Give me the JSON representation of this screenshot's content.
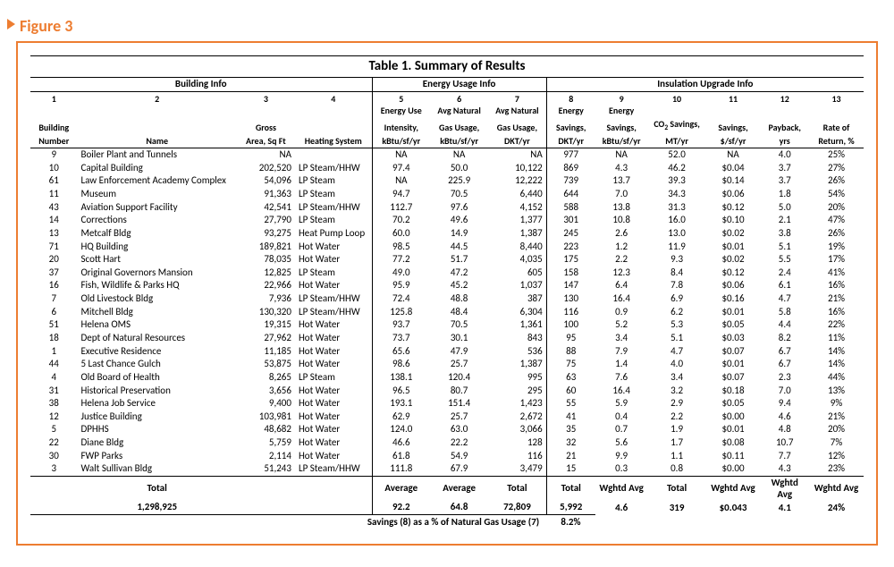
{
  "figureLabel": "Figure 3",
  "tableTitle": "Table 1. Summary of Results",
  "groups": {
    "g1": "Building Info",
    "g2": "Energy Usage Info",
    "g3": "Insulation Upgrade Info"
  },
  "colNums": [
    "1",
    "2",
    "3",
    "4",
    "5",
    "6",
    "7",
    "8",
    "9",
    "10",
    "11",
    "12",
    "13"
  ],
  "headers": {
    "h1a": "Building",
    "h1b": "Number",
    "h2": "Name",
    "h3a": "Gross",
    "h3b": "Area, Sq Ft",
    "h4": "Heating System",
    "h5a": "Energy Use",
    "h5b": "Intensity,",
    "h5c": "kBtu/sf/yr",
    "h6a": "Avg Natural",
    "h6b": "Gas Usage,",
    "h6c": "kBtu/sf/yr",
    "h7a": "Avg Natural",
    "h7b": "Gas Usage,",
    "h7c": "DKT/yr",
    "h8a": "Energy",
    "h8b": "Savings,",
    "h8c": "DKT/yr",
    "h9a": "Energy",
    "h9b": "Savings,",
    "h9c": "kBtu/sf/yr",
    "h10a": "CO",
    "h10b": " Savings,",
    "h10c": "MT/yr",
    "h11a": "Savings,",
    "h11b": "$/sf/yr",
    "h12a": "Payback,",
    "h12b": "yrs",
    "h13a": "Rate of",
    "h13b": "Return, %"
  },
  "rows": [
    {
      "n": "9",
      "name": "Boiler Plant and Tunnels",
      "area": "NA",
      "hs": "",
      "eui": "NA",
      "g6": "NA",
      "g7": "NA",
      "s8": "977",
      "s9": "NA",
      "co2": "52.0",
      "sv": "NA",
      "pb": "4.0",
      "rr": "25%"
    },
    {
      "n": "10",
      "name": "Capital Building",
      "area": "202,520",
      "hs": "LP Steam/HHW",
      "eui": "97.4",
      "g6": "50.0",
      "g7": "10,122",
      "s8": "869",
      "s9": "4.3",
      "co2": "46.2",
      "sv": "$0.04",
      "pb": "3.7",
      "rr": "27%"
    },
    {
      "n": "61",
      "name": "Law Enforcement Academy Complex",
      "area": "54,096",
      "hs": "LP Steam",
      "eui": "NA",
      "g6": "225.9",
      "g7": "12,222",
      "s8": "739",
      "s9": "13.7",
      "co2": "39.3",
      "sv": "$0.14",
      "pb": "3.7",
      "rr": "26%"
    },
    {
      "n": "11",
      "name": "Museum",
      "area": "91,363",
      "hs": "LP Steam",
      "eui": "94.7",
      "g6": "70.5",
      "g7": "6,440",
      "s8": "644",
      "s9": "7.0",
      "co2": "34.3",
      "sv": "$0.06",
      "pb": "1.8",
      "rr": "54%"
    },
    {
      "n": "43",
      "name": "Aviation Support Facility",
      "area": "42,541",
      "hs": "LP Steam/HHW",
      "eui": "112.7",
      "g6": "97.6",
      "g7": "4,152",
      "s8": "588",
      "s9": "13.8",
      "co2": "31.3",
      "sv": "$0.12",
      "pb": "5.0",
      "rr": "20%"
    },
    {
      "n": "14",
      "name": "Corrections",
      "area": "27,790",
      "hs": "LP Steam",
      "eui": "70.2",
      "g6": "49.6",
      "g7": "1,377",
      "s8": "301",
      "s9": "10.8",
      "co2": "16.0",
      "sv": "$0.10",
      "pb": "2.1",
      "rr": "47%"
    },
    {
      "n": "13",
      "name": "Metcalf Bldg",
      "area": "93,275",
      "hs": "Heat Pump Loop",
      "eui": "60.0",
      "g6": "14.9",
      "g7": "1,387",
      "s8": "245",
      "s9": "2.6",
      "co2": "13.0",
      "sv": "$0.02",
      "pb": "3.8",
      "rr": "26%"
    },
    {
      "n": "71",
      "name": "HQ  Building",
      "area": "189,821",
      "hs": "Hot Water",
      "eui": "98.5",
      "g6": "44.5",
      "g7": "8,440",
      "s8": "223",
      "s9": "1.2",
      "co2": "11.9",
      "sv": "$0.01",
      "pb": "5.1",
      "rr": "19%"
    },
    {
      "n": "20",
      "name": "Scott Hart",
      "area": "78,035",
      "hs": "Hot Water",
      "eui": "77.2",
      "g6": "51.7",
      "g7": "4,035",
      "s8": "175",
      "s9": "2.2",
      "co2": "9.3",
      "sv": "$0.02",
      "pb": "5.5",
      "rr": "17%"
    },
    {
      "n": "37",
      "name": "Original Governors Mansion",
      "area": "12,825",
      "hs": "LP Steam",
      "eui": "49.0",
      "g6": "47.2",
      "g7": "605",
      "s8": "158",
      "s9": "12.3",
      "co2": "8.4",
      "sv": "$0.12",
      "pb": "2.4",
      "rr": "41%"
    },
    {
      "n": "16",
      "name": "Fish, Wildlife & Parks HQ",
      "area": "22,966",
      "hs": "Hot Water",
      "eui": "95.9",
      "g6": "45.2",
      "g7": "1,037",
      "s8": "147",
      "s9": "6.4",
      "co2": "7.8",
      "sv": "$0.06",
      "pb": "6.1",
      "rr": "16%"
    },
    {
      "n": "7",
      "name": "Old Livestock Bldg",
      "area": "7,936",
      "hs": "LP Steam/HHW",
      "eui": "72.4",
      "g6": "48.8",
      "g7": "387",
      "s8": "130",
      "s9": "16.4",
      "co2": "6.9",
      "sv": "$0.16",
      "pb": "4.7",
      "rr": "21%"
    },
    {
      "n": "6",
      "name": "Mitchell Bldg",
      "area": "130,320",
      "hs": "LP Steam/HHW",
      "eui": "125.8",
      "g6": "48.4",
      "g7": "6,304",
      "s8": "116",
      "s9": "0.9",
      "co2": "6.2",
      "sv": "$0.01",
      "pb": "5.8",
      "rr": "16%"
    },
    {
      "n": "51",
      "name": "Helena OMS",
      "area": "19,315",
      "hs": "Hot Water",
      "eui": "93.7",
      "g6": "70.5",
      "g7": "1,361",
      "s8": "100",
      "s9": "5.2",
      "co2": "5.3",
      "sv": "$0.05",
      "pb": "4.4",
      "rr": "22%"
    },
    {
      "n": "18",
      "name": "Dept of Natural Resources",
      "area": "27,962",
      "hs": "Hot Water",
      "eui": "73.7",
      "g6": "30.1",
      "g7": "843",
      "s8": "95",
      "s9": "3.4",
      "co2": "5.1",
      "sv": "$0.03",
      "pb": "8.2",
      "rr": "11%"
    },
    {
      "n": "1",
      "name": "Executive Residence",
      "area": "11,185",
      "hs": "Hot Water",
      "eui": "65.6",
      "g6": "47.9",
      "g7": "536",
      "s8": "88",
      "s9": "7.9",
      "co2": "4.7",
      "sv": "$0.07",
      "pb": "6.7",
      "rr": "14%"
    },
    {
      "n": "44",
      "name": "5 Last Chance Gulch",
      "area": "53,875",
      "hs": "Hot Water",
      "eui": "98.6",
      "g6": "25.7",
      "g7": "1,387",
      "s8": "75",
      "s9": "1.4",
      "co2": "4.0",
      "sv": "$0.01",
      "pb": "6.7",
      "rr": "14%"
    },
    {
      "n": "4",
      "name": "Old Board of Health",
      "area": "8,265",
      "hs": "LP Steam",
      "eui": "138.1",
      "g6": "120.4",
      "g7": "995",
      "s8": "63",
      "s9": "7.6",
      "co2": "3.4",
      "sv": "$0.07",
      "pb": "2.3",
      "rr": "44%"
    },
    {
      "n": "31",
      "name": "Historical Preservation",
      "area": "3,656",
      "hs": "Hot Water",
      "eui": "96.5",
      "g6": "80.7",
      "g7": "295",
      "s8": "60",
      "s9": "16.4",
      "co2": "3.2",
      "sv": "$0.18",
      "pb": "7.0",
      "rr": "13%"
    },
    {
      "n": "38",
      "name": "Helena Job Service",
      "area": "9,400",
      "hs": "Hot Water",
      "eui": "193.1",
      "g6": "151.4",
      "g7": "1,423",
      "s8": "55",
      "s9": "5.9",
      "co2": "2.9",
      "sv": "$0.05",
      "pb": "9.4",
      "rr": "9%"
    },
    {
      "n": "12",
      "name": "Justice Building",
      "area": "103,981",
      "hs": "Hot Water",
      "eui": "62.9",
      "g6": "25.7",
      "g7": "2,672",
      "s8": "41",
      "s9": "0.4",
      "co2": "2.2",
      "sv": "$0.00",
      "pb": "4.6",
      "rr": "21%"
    },
    {
      "n": "5",
      "name": "DPHHS",
      "area": "48,682",
      "hs": "Hot Water",
      "eui": "124.0",
      "g6": "63.0",
      "g7": "3,066",
      "s8": "35",
      "s9": "0.7",
      "co2": "1.9",
      "sv": "$0.01",
      "pb": "4.8",
      "rr": "20%"
    },
    {
      "n": "22",
      "name": "Diane Bldg",
      "area": "5,759",
      "hs": "Hot Water",
      "eui": "46.6",
      "g6": "22.2",
      "g7": "128",
      "s8": "32",
      "s9": "5.6",
      "co2": "1.7",
      "sv": "$0.08",
      "pb": "10.7",
      "rr": "7%"
    },
    {
      "n": "30",
      "name": "FWP Parks",
      "area": "2,114",
      "hs": "Hot Water",
      "eui": "61.8",
      "g6": "54.9",
      "g7": "116",
      "s8": "21",
      "s9": "9.9",
      "co2": "1.1",
      "sv": "$0.11",
      "pb": "7.7",
      "rr": "12%"
    },
    {
      "n": "3",
      "name": "Walt Sullivan Bldg",
      "area": "51,243",
      "hs": "LP Steam/HHW",
      "eui": "111.8",
      "g6": "67.9",
      "g7": "3,479",
      "s8": "15",
      "s9": "0.3",
      "co2": "0.8",
      "sv": "$0.00",
      "pb": "4.3",
      "rr": "23%"
    }
  ],
  "totals1": {
    "l2": "Total",
    "l5": "Average",
    "l6": "Average",
    "l7": "Total",
    "l8": "Total",
    "l9": "Wghtd Avg",
    "l10": "Total",
    "l11": "Wghtd Avg",
    "l12": "Wghtd Avg",
    "l13": "Wghtd Avg"
  },
  "totals2": {
    "area": "1,298,925",
    "c5": "92.2",
    "c6": "64.8",
    "c7": "72,809",
    "c8": "5,992",
    "c9": "4.6",
    "c10": "319",
    "c11": "$0.043",
    "c12": "4.1",
    "c13": "24%"
  },
  "footnote": {
    "label": "Savings (8) as a % of Natural Gas Usage (7)",
    "val": "8.2%"
  }
}
